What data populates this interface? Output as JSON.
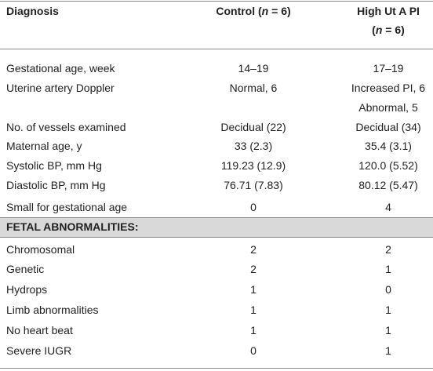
{
  "header": {
    "diagnosis": "Diagnosis",
    "control": [
      "Control (",
      "n",
      " = 6)"
    ],
    "high": [
      [
        "High Ut A PI"
      ],
      [
        "(",
        "n",
        " = 6)"
      ]
    ]
  },
  "rows": [
    [
      "Gestational age, week",
      [
        "14–19"
      ],
      [
        "17–19"
      ]
    ],
    [
      "Uterine artery Doppler",
      [
        "Normal, 6"
      ],
      [
        "Increased PI, 6",
        "Abnormal, 5"
      ]
    ],
    [
      "No. of vessels examined",
      [
        "Decidual (22)"
      ],
      [
        "Decidual (34)"
      ]
    ],
    [
      "Maternal age, y",
      [
        "33 (2.3)"
      ],
      [
        "35.4 (3.1)"
      ]
    ],
    [
      "Systolic BP, mm Hg",
      [
        "119.23 (12.9)"
      ],
      [
        "120.0 (5.52)"
      ]
    ],
    [
      "Diastolic BP, mm Hg",
      [
        "76.71 (7.83)"
      ],
      [
        "80.12 (5.47)"
      ]
    ],
    [
      "Small for gestational age",
      [
        "0"
      ],
      [
        "4"
      ]
    ]
  ],
  "section": "FETAL ABNORMALITIES:",
  "section_rows": [
    [
      "Chromosomal",
      [
        "2"
      ],
      [
        "2"
      ]
    ],
    [
      "Genetic",
      [
        "2"
      ],
      [
        "1"
      ]
    ],
    [
      "Hydrops",
      [
        "1"
      ],
      [
        "0"
      ]
    ],
    [
      "Limb abnormalities",
      [
        "1"
      ],
      [
        "1"
      ]
    ],
    [
      "No heart beat",
      [
        "1"
      ],
      [
        "1"
      ]
    ],
    [
      "Severe IUGR",
      [
        "0"
      ],
      [
        "1"
      ]
    ]
  ]
}
